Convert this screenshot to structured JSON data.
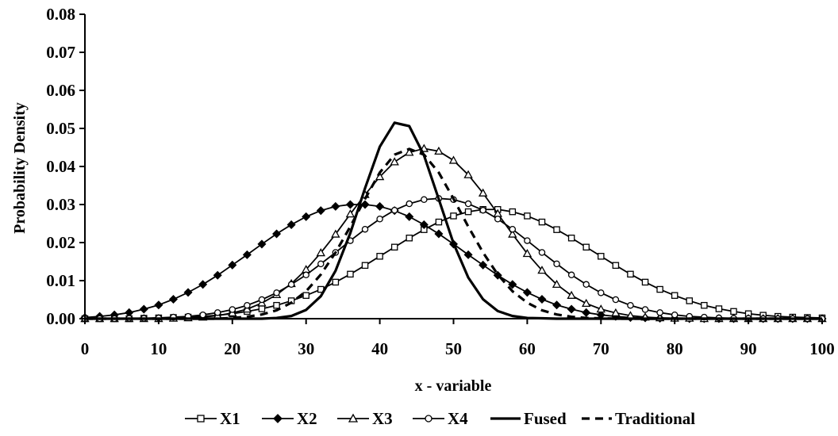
{
  "chart_data": {
    "type": "line",
    "title": "",
    "xlabel": "x - variable",
    "ylabel": "Probability Density",
    "xlim": [
      0,
      100
    ],
    "ylim": [
      0,
      0.08
    ],
    "x_ticks": [
      "0",
      "10",
      "20",
      "30",
      "40",
      "50",
      "60",
      "70",
      "80",
      "90",
      "100"
    ],
    "y_ticks": [
      "0.00",
      "0.01",
      "0.02",
      "0.03",
      "0.04",
      "0.05",
      "0.06",
      "0.07",
      "0.08"
    ],
    "grid": false,
    "legend_position": "bottom",
    "x": [
      0,
      2,
      4,
      6,
      8,
      10,
      12,
      14,
      16,
      18,
      20,
      22,
      24,
      26,
      28,
      30,
      32,
      34,
      36,
      38,
      40,
      42,
      44,
      46,
      48,
      50,
      52,
      54,
      56,
      58,
      60,
      62,
      64,
      66,
      68,
      70,
      72,
      74,
      76,
      78,
      80,
      82,
      84,
      86,
      88,
      90,
      92,
      94,
      96,
      98,
      100
    ],
    "series": [
      {
        "name": "X1",
        "marker": "square-open",
        "line": "solid",
        "values": [
          0.0,
          0.0,
          0.0,
          0.0,
          0.0001,
          0.0002,
          0.0003,
          0.0004,
          0.0006,
          0.0009,
          0.0013,
          0.0019,
          0.0026,
          0.0035,
          0.0047,
          0.0061,
          0.0077,
          0.0096,
          0.0117,
          0.014,
          0.0164,
          0.0188,
          0.0212,
          0.0234,
          0.0254,
          0.027,
          0.0281,
          0.0287,
          0.0287,
          0.0281,
          0.027,
          0.0254,
          0.0234,
          0.0212,
          0.0188,
          0.0164,
          0.014,
          0.0117,
          0.0096,
          0.0077,
          0.0061,
          0.0047,
          0.0035,
          0.0026,
          0.0019,
          0.0013,
          0.0009,
          0.0006,
          0.0004,
          0.0003,
          0.0002
        ]
      },
      {
        "name": "X2",
        "marker": "diamond-filled",
        "line": "solid",
        "values": [
          0.0003,
          0.0006,
          0.001,
          0.0016,
          0.0025,
          0.0036,
          0.0051,
          0.0069,
          0.009,
          0.0114,
          0.0141,
          0.0168,
          0.0196,
          0.0223,
          0.0247,
          0.0268,
          0.0284,
          0.0295,
          0.03,
          0.03,
          0.0295,
          0.0284,
          0.0268,
          0.0247,
          0.0223,
          0.0196,
          0.0168,
          0.0141,
          0.0114,
          0.009,
          0.0069,
          0.0051,
          0.0036,
          0.0025,
          0.0016,
          0.001,
          0.0006,
          0.0003,
          0.0002,
          0.0001,
          0.0001,
          0.0,
          0.0,
          0.0,
          0.0,
          0.0,
          0.0,
          0.0,
          0.0,
          0.0,
          0.0
        ]
      },
      {
        "name": "X3",
        "marker": "triangle-open",
        "line": "solid",
        "values": [
          0.0,
          0.0,
          0.0,
          0.0,
          0.0,
          0.0,
          0.0001,
          0.0002,
          0.0004,
          0.0008,
          0.0015,
          0.0025,
          0.0041,
          0.0063,
          0.0092,
          0.0129,
          0.0173,
          0.0222,
          0.0275,
          0.0326,
          0.0373,
          0.0412,
          0.0437,
          0.0447,
          0.044,
          0.0416,
          0.0378,
          0.033,
          0.0276,
          0.0222,
          0.0171,
          0.0127,
          0.009,
          0.0061,
          0.004,
          0.0025,
          0.0015,
          0.0008,
          0.0004,
          0.0002,
          0.0001,
          0.0001,
          0.0,
          0.0,
          0.0,
          0.0,
          0.0,
          0.0,
          0.0,
          0.0,
          0.0
        ]
      },
      {
        "name": "X4",
        "marker": "circle-open",
        "line": "solid",
        "values": [
          0.0,
          0.0,
          0.0,
          0.0001,
          0.0001,
          0.0002,
          0.0004,
          0.0006,
          0.001,
          0.0016,
          0.0024,
          0.0035,
          0.005,
          0.0068,
          0.009,
          0.0115,
          0.0144,
          0.0174,
          0.0205,
          0.0235,
          0.0262,
          0.0285,
          0.0302,
          0.0313,
          0.0316,
          0.0313,
          0.0302,
          0.0285,
          0.0262,
          0.0235,
          0.0205,
          0.0174,
          0.0144,
          0.0115,
          0.009,
          0.0068,
          0.005,
          0.0035,
          0.0024,
          0.0016,
          0.001,
          0.0006,
          0.0004,
          0.0002,
          0.0001,
          0.0001,
          0.0,
          0.0,
          0.0,
          0.0,
          0.0
        ]
      },
      {
        "name": "Fused",
        "marker": "none",
        "line": "solid-thick",
        "values": [
          0.0,
          0.0,
          0.0,
          0.0,
          0.0,
          0.0,
          0.0,
          0.0,
          0.0,
          0.0,
          0.0,
          0.0,
          0.0,
          0.0002,
          0.0007,
          0.0023,
          0.0059,
          0.0126,
          0.0225,
          0.0343,
          0.0452,
          0.0515,
          0.0506,
          0.0429,
          0.0314,
          0.0198,
          0.0108,
          0.0051,
          0.002,
          0.0007,
          0.0002,
          0.0001,
          0.0,
          0.0,
          0.0,
          0.0,
          0.0,
          0.0,
          0.0,
          0.0,
          0.0,
          0.0,
          0.0,
          0.0,
          0.0,
          0.0,
          0.0,
          0.0,
          0.0,
          0.0,
          0.0
        ]
      },
      {
        "name": "Traditional",
        "marker": "none",
        "line": "dashed-thick",
        "values": [
          0.0,
          0.0,
          0.0,
          0.0,
          0.0,
          0.0,
          0.0,
          0.0,
          0.0,
          0.0,
          0.0002,
          0.0005,
          0.0011,
          0.0022,
          0.0042,
          0.0072,
          0.0116,
          0.0174,
          0.0242,
          0.0315,
          0.0384,
          0.0431,
          0.0446,
          0.0431,
          0.0384,
          0.0315,
          0.0242,
          0.0174,
          0.0116,
          0.0072,
          0.0042,
          0.0022,
          0.0011,
          0.0005,
          0.0002,
          0.0001,
          0.0,
          0.0,
          0.0,
          0.0,
          0.0,
          0.0,
          0.0,
          0.0,
          0.0,
          0.0,
          0.0,
          0.0,
          0.0,
          0.0,
          0.0
        ]
      }
    ]
  }
}
